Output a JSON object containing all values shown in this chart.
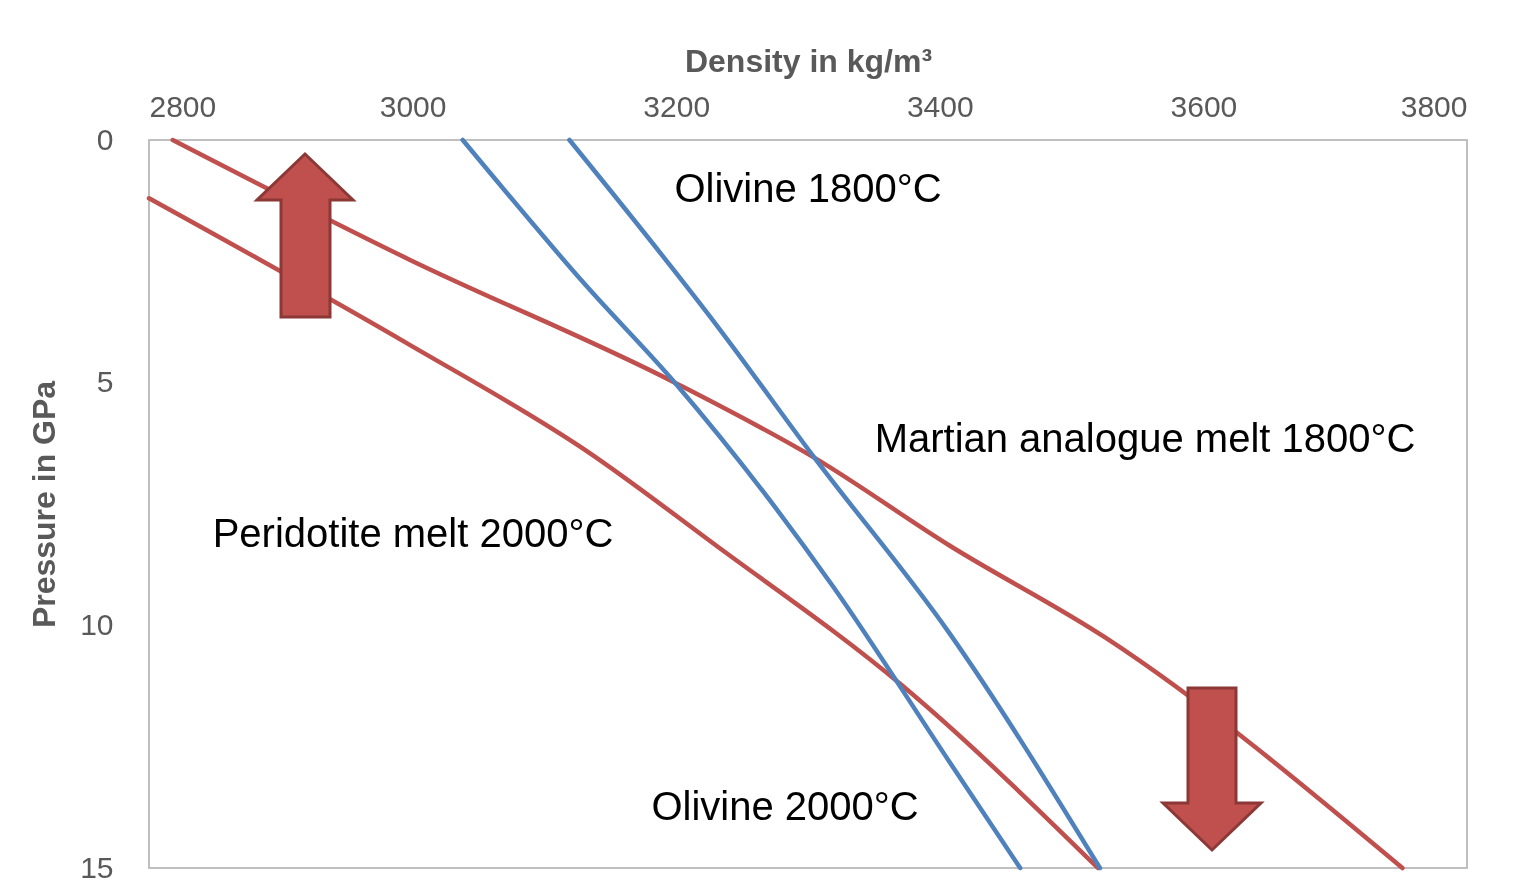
{
  "chart_data": {
    "type": "line",
    "xlabel": "Density in kg/m³",
    "ylabel": "Pressure in GPa",
    "xlim": [
      2800,
      3800
    ],
    "xticks": [
      2800,
      3000,
      3200,
      3400,
      3600,
      3800
    ],
    "ylim": [
      15,
      0
    ],
    "yticks": [
      0,
      5,
      10,
      15
    ],
    "grid": false,
    "legend": false,
    "marker": "none",
    "line_style": "solid",
    "series": [
      {
        "name": "Martian analogue melt 1800°C",
        "color": "#c0504d",
        "x": [
          2818,
          2996.5,
          3199,
          3305,
          3407,
          3526,
          3751
        ],
        "values": [
          0,
          2.45,
          5.0,
          6.55,
          8.35,
          10.26,
          15
        ]
      },
      {
        "name": "Peridotite melt 2000°C",
        "color": "#c0504d",
        "x": [
          2800,
          2996.5,
          3131.6,
          3230,
          3371,
          3520
        ],
        "values": [
          1.2,
          4.2,
          6.4,
          8.35,
          11.23,
          15
        ]
      },
      {
        "name": "Olivine 2000°C",
        "color": "#4f81bd",
        "x": [
          3038,
          3131.6,
          3199,
          3319,
          3407,
          3461
        ],
        "values": [
          0,
          3.0,
          5.0,
          9.2,
          12.8,
          15
        ]
      },
      {
        "name": "Olivine 1800°C",
        "color": "#4f81bd",
        "x": [
          3119,
          3233,
          3305,
          3407,
          3521.5
        ],
        "values": [
          0,
          3.9,
          6.55,
          10.15,
          15
        ]
      }
    ]
  }
}
